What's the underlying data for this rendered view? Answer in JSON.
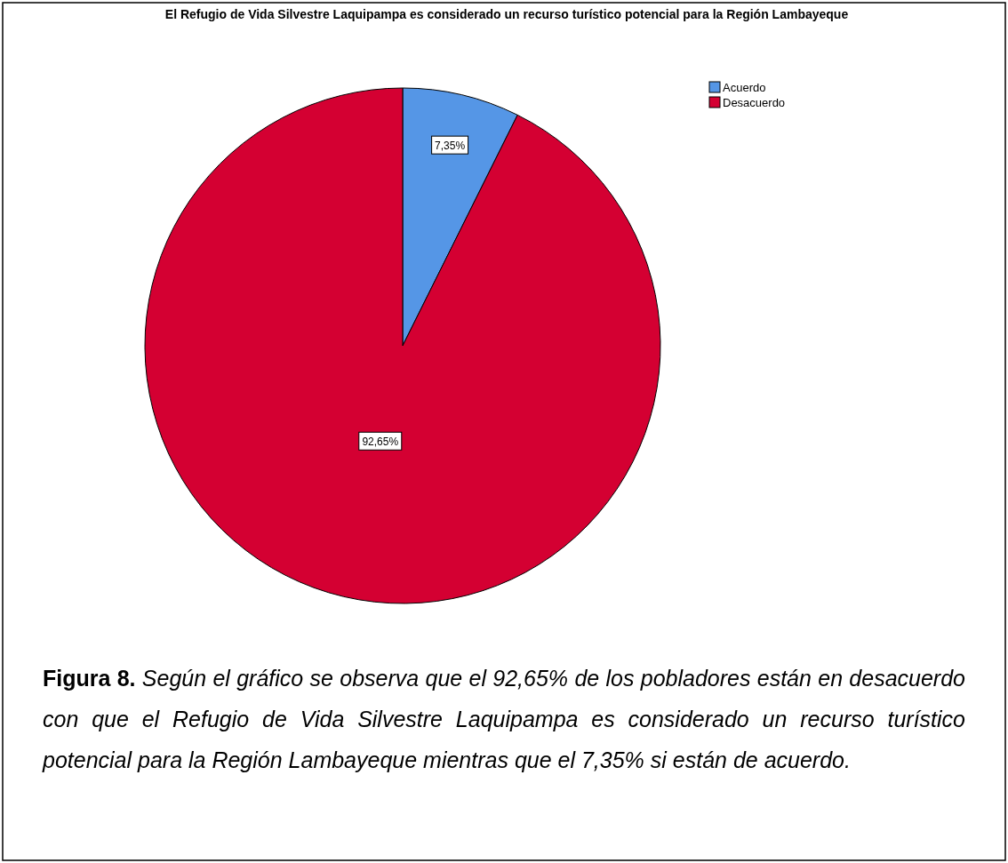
{
  "chart_data": {
    "type": "pie",
    "title": "El Refugio de Vida Silvestre Laquipampa es considerado un recurso turístico potencial para la Región Lambayeque",
    "categories": [
      "Acuerdo",
      "Desacuerdo"
    ],
    "values": [
      7.35,
      92.65
    ],
    "value_labels": [
      "7,35%",
      "92,65%"
    ],
    "colors": [
      "#5596e6",
      "#d40032"
    ],
    "legend": "top right",
    "annotations": [
      "Figura 8.",
      "Según el gráfico se observa que el 92,65% de los pobladores están en desacuerdo con que el Refugio de Vida Silvestre Laquipampa es considerado un recurso turístico potencial para la Región Lambayeque mientras que el 7,35% si están de acuerdo."
    ]
  }
}
